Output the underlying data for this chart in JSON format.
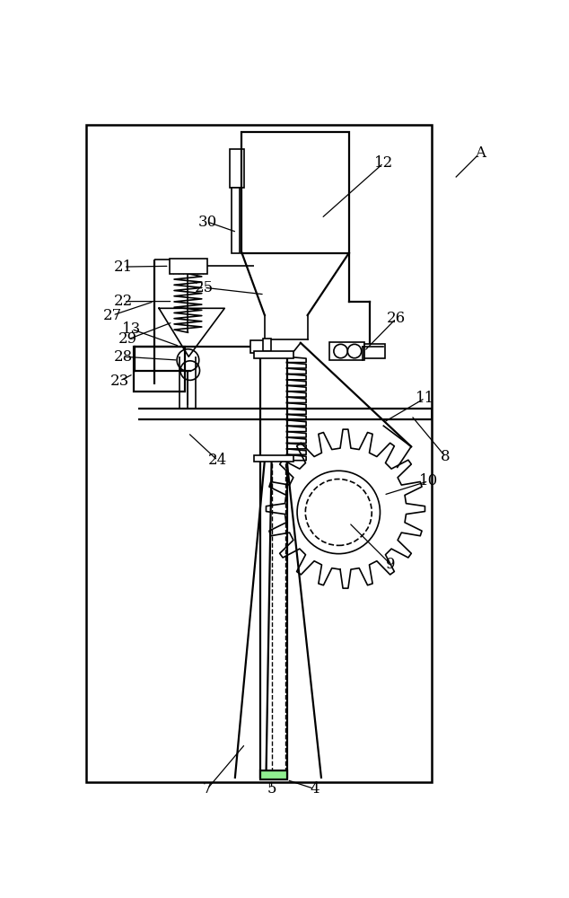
{
  "bg_color": "#ffffff",
  "line_color": "#000000",
  "fig_width": 6.34,
  "fig_height": 10.0,
  "lw": 1.2,
  "lw2": 1.6
}
